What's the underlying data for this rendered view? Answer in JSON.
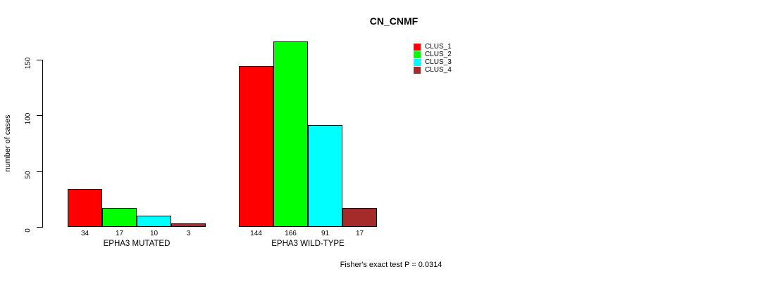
{
  "chart_data": {
    "type": "bar",
    "title": "CN_CNMF",
    "ylabel": "number of cases",
    "xlabel": "",
    "categories": [
      "EPHA3 MUTATED",
      "EPHA3 WILD-TYPE"
    ],
    "series": [
      {
        "name": "CLUS_1",
        "color": "#ff0000",
        "values": [
          34,
          144
        ]
      },
      {
        "name": "CLUS_2",
        "color": "#00ff00",
        "values": [
          17,
          166
        ]
      },
      {
        "name": "CLUS_3",
        "color": "#00ffff",
        "values": [
          10,
          91
        ]
      },
      {
        "name": "CLUS_4",
        "color": "#a52a2a",
        "values": [
          3,
          17
        ]
      }
    ],
    "yticks": [
      0,
      50,
      100,
      150
    ],
    "ylim": [
      0,
      170
    ],
    "grid": false,
    "bar_value_labels_shown": true,
    "legend_position": "top-right",
    "annotation": "Fisher's exact test P = 0.0314"
  }
}
